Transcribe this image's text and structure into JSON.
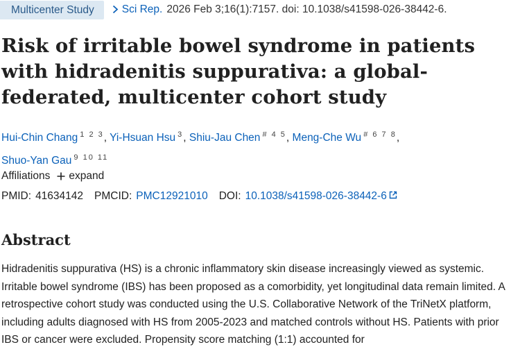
{
  "header": {
    "publication_type": "Multicenter Study",
    "journal": "Sci Rep.",
    "citation": "2026 Feb 3;16(1):7157. doi: 10.1038/s41598-026-38442-6."
  },
  "article": {
    "title": "Risk of irritable bowel syndrome in patients with hidradenitis suppurativa: a global-federated, multicenter cohort study",
    "authors": [
      {
        "name": "Hui-Chin Chang",
        "sup": "1 2 3"
      },
      {
        "name": "Yi-Hsuan Hsu",
        "sup": "3"
      },
      {
        "name": "Shiu-Jau Chen",
        "sup": "# 4 5"
      },
      {
        "name": "Meng-Che Wu",
        "sup": "# 6 7 8"
      },
      {
        "name": "Shuo-Yan Gau",
        "sup": "9 10 11"
      }
    ],
    "affiliations_label": "Affiliations",
    "expand_label": "expand",
    "pmid_label": "PMID:",
    "pmid": "41634142",
    "pmcid_label": "PMCID:",
    "pmcid": "PMC12921010",
    "doi_label": "DOI:",
    "doi": "10.1038/s41598-026-38442-6"
  },
  "abstract": {
    "heading": "Abstract",
    "text": "Hidradenitis suppurativa (HS) is a chronic inflammatory skin disease increasingly viewed as systemic. Irritable bowel syndrome (IBS) has been proposed as a comorbidity, yet longitudinal data remain limited. A retrospective cohort study was conducted using the U.S. Collaborative Network of the TriNetX platform, including adults diagnosed with HS from 2005-2023 and matched controls without HS. Patients with prior IBS or cancer were excluded. Propensity score matching (1:1) accounted for"
  },
  "icons": {
    "chevron": "chevron-right-icon",
    "plus": "plus-icon",
    "external_link": "external-link-icon"
  },
  "colors": {
    "link": "#0b61b9",
    "badge_bg": "#dce8f2",
    "text": "#212121"
  }
}
